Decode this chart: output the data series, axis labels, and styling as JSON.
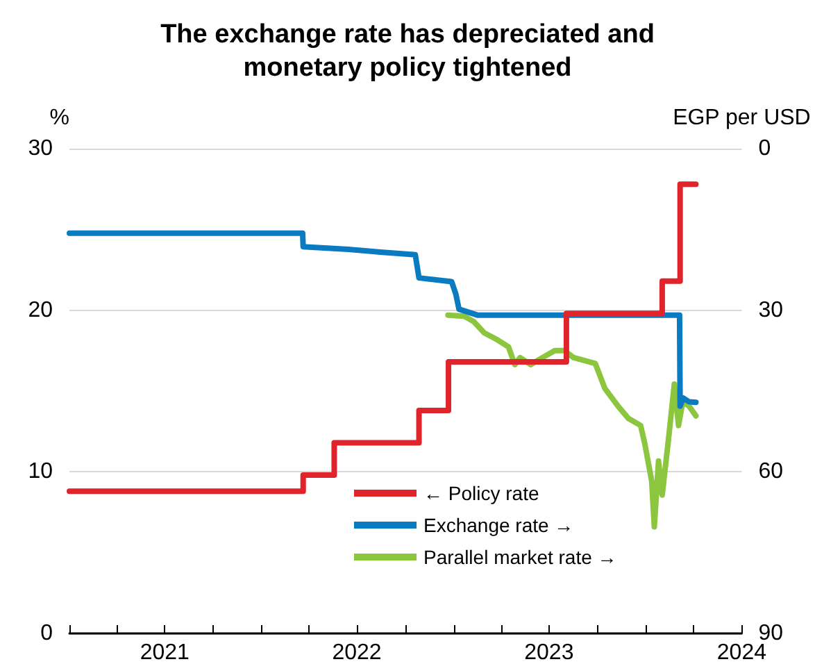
{
  "chart_data": {
    "type": "line",
    "title": "The exchange rate has depreciated and\nmonetary policy tightened",
    "ylabel": "%",
    "y2label": "EGP per USD",
    "xlim": [
      "2021-01-01",
      "2024-07-01"
    ],
    "xticks": [
      {
        "value": "2021-01-01",
        "label": null
      },
      {
        "value": "2021-04-01",
        "label": null
      },
      {
        "value": "2021-07-01",
        "label": "2021"
      },
      {
        "value": "2021-10-01",
        "label": null
      },
      {
        "value": "2022-01-01",
        "label": null
      },
      {
        "value": "2022-04-01",
        "label": null
      },
      {
        "value": "2022-07-01",
        "label": "2022"
      },
      {
        "value": "2022-10-01",
        "label": null
      },
      {
        "value": "2023-01-01",
        "label": null
      },
      {
        "value": "2023-04-01",
        "label": null
      },
      {
        "value": "2023-07-01",
        "label": "2023"
      },
      {
        "value": "2023-10-01",
        "label": null
      },
      {
        "value": "2024-01-01",
        "label": null
      },
      {
        "value": "2024-04-01",
        "label": null
      },
      {
        "value": "2024-07-01",
        "label": "2024"
      }
    ],
    "ylim": [
      0,
      30
    ],
    "yticks": [
      0,
      10,
      20,
      30
    ],
    "y2lim": [
      90,
      0
    ],
    "y2ticks": [
      0,
      30,
      60,
      90
    ],
    "grid": "y",
    "legend": "bottom",
    "marker": "none",
    "line_style": "solid",
    "series": [
      {
        "name": "← Policy rate",
        "type": "step",
        "color": "#e0242b",
        "x": [
          "2021-01-01",
          "2022-03-21",
          "2022-05-19",
          "2022-10-27",
          "2022-12-22",
          "2023-08-03",
          "2024-02-01",
          "2024-03-06",
          "2024-04-05"
        ],
        "values": [
          8.8,
          9.8,
          11.8,
          13.8,
          16.8,
          19.8,
          21.8,
          27.8,
          27.8
        ]
      },
      {
        "name": "Exchange rate →",
        "axis": "y2",
        "color": "#0a7bc1",
        "x": [
          "2021-01-01",
          "2022-03-20",
          "2022-03-21",
          "2022-06-15",
          "2022-08-15",
          "2022-10-20",
          "2022-10-27",
          "2022-12-28",
          "2023-01-05",
          "2023-01-11",
          "2023-02-15",
          "2024-03-05",
          "2024-03-06",
          "2024-03-12",
          "2024-03-23",
          "2024-04-05"
        ],
        "values": [
          15.7,
          15.7,
          18.2,
          18.7,
          19.2,
          19.7,
          24.0,
          24.7,
          27.0,
          29.8,
          30.9,
          30.9,
          47.8,
          46.3,
          47.0,
          47.1
        ]
      },
      {
        "name": "Parallel market rate →",
        "axis": "y2",
        "color": "#8cc63f",
        "x": [
          "2022-12-21",
          "2023-01-21",
          "2023-02-08",
          "2023-02-28",
          "2023-03-25",
          "2023-04-15",
          "2023-04-27",
          "2023-05-07",
          "2023-05-27",
          "2023-06-22",
          "2023-07-12",
          "2023-07-30",
          "2023-08-17",
          "2023-09-27",
          "2023-10-15",
          "2023-11-09",
          "2023-11-29",
          "2023-12-22",
          "2023-12-30",
          "2024-01-12",
          "2024-01-17",
          "2024-01-25",
          "2024-02-01",
          "2024-02-14",
          "2024-02-24",
          "2024-03-03",
          "2024-03-11",
          "2024-03-23",
          "2024-04-05"
        ],
        "values": [
          30.9,
          31.1,
          32.1,
          34.2,
          35.5,
          36.8,
          40.1,
          38.8,
          40.1,
          38.6,
          37.5,
          37.5,
          38.8,
          39.9,
          44.5,
          47.8,
          50.1,
          51.4,
          54.8,
          61.7,
          70.2,
          58.0,
          64.3,
          53.0,
          43.7,
          51.4,
          47.0,
          47.8,
          49.6
        ]
      }
    ]
  }
}
